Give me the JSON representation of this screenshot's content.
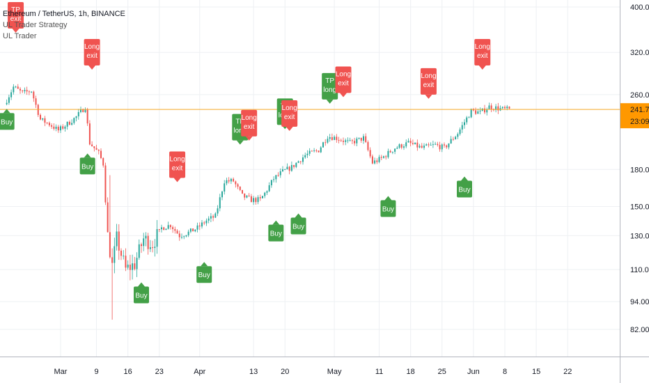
{
  "header": {
    "symbol_line": "Ethereum / TetherUS, 1h, BINANCE",
    "indicator_1": "UL Trader Strategy",
    "indicator_2": "UL Trader"
  },
  "colors": {
    "up": "#26a69a",
    "down": "#ef5350",
    "buy": "#43a047",
    "sell": "#f05350",
    "price_line": "#f5a623",
    "countdown_bg": "#ff9800",
    "grid": "#eef0f3",
    "text": "#131722"
  },
  "chart_data": {
    "type": "candlestick",
    "title": "Ethereum / TetherUS, 1h, BINANCE",
    "y_scale": "log",
    "ylim": [
      72,
      420
    ],
    "y_ticks": [
      82,
      94,
      110,
      130,
      150,
      180,
      260,
      320,
      400
    ],
    "x_ticks": [
      "Mar",
      "9",
      "16",
      "23",
      "Apr",
      "13",
      "20",
      "May",
      "11",
      "18",
      "25",
      "Jun",
      "8",
      "15",
      "22"
    ],
    "last_price": "241.70",
    "countdown": "23:09",
    "price_path": [
      [
        "Feb 18",
        248
      ],
      [
        "Feb 20",
        270
      ],
      [
        "Feb 22",
        262
      ],
      [
        "Feb 24",
        265
      ],
      [
        "Feb 26",
        230
      ],
      [
        "Feb 28",
        225
      ],
      [
        "Mar 1",
        218
      ],
      [
        "Mar 3",
        225
      ],
      [
        "Mar 5",
        233
      ],
      [
        "Mar 7",
        245
      ],
      [
        "Mar 8",
        205
      ],
      [
        "Mar 10",
        195
      ],
      [
        "Mar 11",
        185
      ],
      [
        "Mar 12",
        130
      ],
      [
        "Mar 13",
        112
      ],
      [
        "Mar 14",
        128
      ],
      [
        "Mar 16",
        110
      ],
      [
        "Mar 18",
        113
      ],
      [
        "Mar 20",
        128
      ],
      [
        "Mar 22",
        125
      ],
      [
        "Mar 24",
        135
      ],
      [
        "Mar 26",
        137
      ],
      [
        "Mar 28",
        130
      ],
      [
        "Mar 30",
        132
      ],
      [
        "Apr 1",
        135
      ],
      [
        "Apr 3",
        140
      ],
      [
        "Apr 5",
        143
      ],
      [
        "Apr 7",
        170
      ],
      [
        "Apr 9",
        170
      ],
      [
        "Apr 11",
        158
      ],
      [
        "Apr 13",
        155
      ],
      [
        "Apr 15",
        155
      ],
      [
        "Apr 16",
        160
      ],
      [
        "Apr 18",
        172
      ],
      [
        "Apr 20",
        178
      ],
      [
        "Apr 22",
        182
      ],
      [
        "Apr 25",
        193
      ],
      [
        "Apr 28",
        198
      ],
      [
        "Apr 30",
        212
      ],
      [
        "May 2",
        210
      ],
      [
        "May 5",
        205
      ],
      [
        "May 8",
        210
      ],
      [
        "May 10",
        186
      ],
      [
        "May 12",
        190
      ],
      [
        "May 15",
        200
      ],
      [
        "May 18",
        205
      ],
      [
        "May 21",
        200
      ],
      [
        "May 24",
        203
      ],
      [
        "May 26",
        200
      ],
      [
        "May 29",
        215
      ],
      [
        "Jun 1",
        240
      ],
      [
        "Jun 3",
        238
      ],
      [
        "Jun 5",
        245
      ],
      [
        "Jun 8",
        242
      ],
      [
        "Jun 9",
        241.7
      ]
    ],
    "signals": [
      {
        "type": "buy",
        "text": [
          "Buy"
        ],
        "date": "Feb 18",
        "anchor": 244
      },
      {
        "type": "sell",
        "text": [
          "TP",
          "exit"
        ],
        "date": "Feb 20",
        "anchor": 350
      },
      {
        "type": "sell",
        "text": [
          "Long",
          "exit"
        ],
        "date": "Mar 8",
        "anchor": 292
      },
      {
        "type": "buy",
        "text": [
          "Buy"
        ],
        "date": "Mar 7",
        "anchor": 196
      },
      {
        "type": "buy",
        "text": [
          "Buy"
        ],
        "date": "Mar 19",
        "anchor": 104
      },
      {
        "type": "sell",
        "text": [
          "Long",
          "exit"
        ],
        "date": "Mar 27",
        "anchor": 168
      },
      {
        "type": "buy",
        "text": [
          "Buy"
        ],
        "date": "Apr 2",
        "anchor": 115
      },
      {
        "type": "buy",
        "text": [
          "TP",
          "long"
        ],
        "date": "Apr 10",
        "anchor": 202,
        "color": "buy",
        "above": true
      },
      {
        "type": "sell",
        "text": [
          "Long",
          "exit"
        ],
        "date": "Apr 12",
        "anchor": 206
      },
      {
        "type": "buy",
        "text": [
          "Buy"
        ],
        "date": "Apr 18",
        "anchor": 141
      },
      {
        "type": "buy",
        "text": [
          "TP",
          "long"
        ],
        "date": "Apr 20",
        "anchor": 218,
        "color": "buy",
        "above": true
      },
      {
        "type": "sell",
        "text": [
          "Long",
          "exit"
        ],
        "date": "Apr 21",
        "anchor": 216
      },
      {
        "type": "buy",
        "text": [
          "Buy"
        ],
        "date": "Apr 23",
        "anchor": 146
      },
      {
        "type": "buy",
        "text": [
          "TP",
          "long"
        ],
        "date": "Apr 30",
        "anchor": 247,
        "color": "buy",
        "above": true
      },
      {
        "type": "sell",
        "text": [
          "Long",
          "exit"
        ],
        "date": "May 3",
        "anchor": 255
      },
      {
        "type": "buy",
        "text": [
          "Buy"
        ],
        "date": "May 13",
        "anchor": 159
      },
      {
        "type": "sell",
        "text": [
          "Long",
          "exit"
        ],
        "date": "May 22",
        "anchor": 253
      },
      {
        "type": "buy",
        "text": [
          "Buy"
        ],
        "date": "May 30",
        "anchor": 175
      },
      {
        "type": "sell",
        "text": [
          "Long",
          "exit"
        ],
        "date": "Jun 3",
        "anchor": 292
      }
    ]
  }
}
